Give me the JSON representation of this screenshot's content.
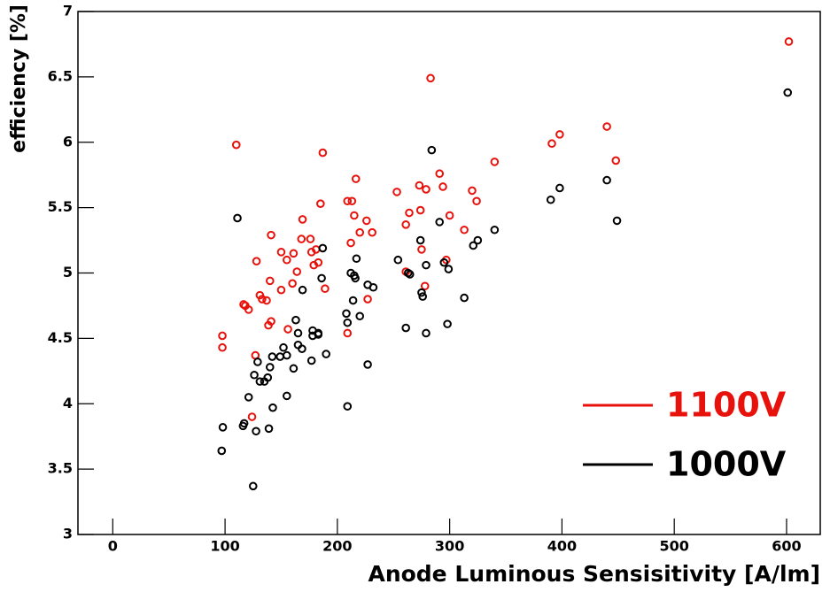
{
  "chart_data": {
    "type": "scatter",
    "xlabel": "Anode Luminous Sensisitivity [A/lm]",
    "ylabel": "efficiency [%]",
    "xlim": [
      -31,
      630
    ],
    "ylim": [
      3,
      7
    ],
    "xticks": [
      0,
      100,
      200,
      300,
      400,
      500,
      600
    ],
    "yticks": [
      3,
      3.5,
      4,
      4.5,
      5,
      5.5,
      6,
      6.5,
      7
    ],
    "legend": "lower right",
    "series": [
      {
        "name": "1100V",
        "color": "#e8120c",
        "x": [
          97.6,
          97.6,
          110,
          116.5,
          118,
          121,
          124,
          127,
          128,
          131,
          133,
          137,
          138.6,
          141,
          141,
          140,
          150,
          150,
          155,
          156,
          160,
          161,
          164,
          168,
          169,
          176,
          177,
          179,
          181,
          183,
          185,
          187,
          189,
          209,
          209,
          213,
          212,
          215,
          216.5,
          220,
          226,
          227,
          231,
          253,
          261,
          261,
          264,
          273,
          274,
          275,
          278,
          279,
          283,
          291,
          294,
          297,
          300,
          313,
          320,
          324,
          340,
          391,
          398,
          440,
          448,
          602
        ],
        "values": [
          4.52,
          4.43,
          5.98,
          4.76,
          4.75,
          4.72,
          3.9,
          4.37,
          5.09,
          4.83,
          4.8,
          4.79,
          4.6,
          5.29,
          4.63,
          4.94,
          5.16,
          4.87,
          5.1,
          4.57,
          4.92,
          5.15,
          5.01,
          5.26,
          5.41,
          5.26,
          5.16,
          5.06,
          5.18,
          5.08,
          5.53,
          5.92,
          4.88,
          4.54,
          5.55,
          5.55,
          5.23,
          5.44,
          5.72,
          5.31,
          5.4,
          4.8,
          5.31,
          5.62,
          5.37,
          5.01,
          5.46,
          5.67,
          5.48,
          5.18,
          4.9,
          5.64,
          6.49,
          5.76,
          5.66,
          5.1,
          5.44,
          5.33,
          5.63,
          5.55,
          5.85,
          5.99,
          6.06,
          6.12,
          5.86,
          6.77
        ]
      },
      {
        "name": "1000V",
        "color": "#000000",
        "x": [
          97,
          98,
          111,
          116,
          117,
          121,
          125,
          126,
          127.6,
          129,
          131,
          135,
          138,
          139,
          140,
          142,
          142.5,
          149,
          152,
          155,
          155,
          161,
          163,
          165,
          165,
          168.5,
          169,
          177,
          178,
          178,
          183,
          183,
          186,
          187,
          190,
          208,
          209,
          209,
          212,
          214,
          215,
          216,
          217,
          220,
          227,
          227,
          232,
          254,
          261,
          263,
          264.6,
          274,
          275,
          276,
          279,
          279,
          284,
          291,
          295,
          298,
          299,
          313,
          321,
          325,
          340,
          390,
          398,
          440,
          449,
          601
        ],
        "values": [
          3.64,
          3.82,
          5.42,
          3.83,
          3.85,
          4.05,
          3.37,
          4.22,
          3.79,
          4.32,
          4.17,
          4.17,
          4.2,
          3.81,
          4.28,
          4.36,
          3.97,
          4.36,
          4.43,
          4.37,
          4.06,
          4.27,
          4.64,
          4.54,
          4.45,
          4.42,
          4.87,
          4.33,
          4.56,
          4.52,
          4.53,
          4.54,
          4.96,
          5.19,
          4.38,
          4.69,
          4.62,
          3.98,
          5.0,
          4.79,
          4.98,
          4.96,
          5.11,
          4.67,
          4.3,
          4.91,
          4.89,
          5.1,
          4.58,
          5.0,
          4.99,
          5.25,
          4.85,
          4.82,
          4.54,
          5.06,
          5.94,
          5.39,
          5.08,
          4.61,
          5.03,
          4.81,
          5.21,
          5.25,
          5.33,
          5.56,
          5.65,
          5.71,
          5.4,
          6.38
        ]
      }
    ]
  }
}
